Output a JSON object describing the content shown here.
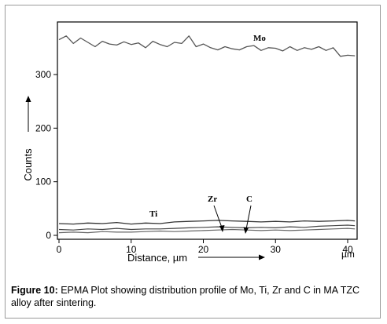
{
  "chart_data": {
    "type": "line",
    "title": "",
    "xlabel": "Distance, µm",
    "x_unit_label": "µm",
    "ylabel": "Counts",
    "xlim": [
      0,
      41
    ],
    "ylim": [
      0,
      395
    ],
    "x_ticks": [
      0,
      10,
      20,
      30,
      40
    ],
    "y_ticks": [
      0,
      100,
      200,
      300
    ],
    "grid": false,
    "series": [
      {
        "name": "Mo",
        "x": [
          0,
          1,
          2,
          3,
          4,
          5,
          6,
          7,
          8,
          9,
          10,
          11,
          12,
          13,
          14,
          15,
          16,
          17,
          18,
          19,
          20,
          21,
          22,
          23,
          24,
          25,
          26,
          27,
          28,
          29,
          30,
          31,
          32,
          33,
          34,
          35,
          36,
          37,
          38,
          39,
          40,
          41
        ],
        "values": [
          365,
          372,
          358,
          368,
          360,
          352,
          362,
          357,
          355,
          361,
          356,
          359,
          350,
          362,
          356,
          352,
          360,
          358,
          372,
          352,
          357,
          350,
          346,
          352,
          348,
          346,
          352,
          354,
          345,
          350,
          349,
          344,
          352,
          345,
          350,
          347,
          352,
          345,
          350,
          334,
          336,
          335
        ]
      },
      {
        "name": "Ti",
        "x": [
          0,
          2,
          4,
          6,
          8,
          10,
          12,
          14,
          16,
          18,
          20,
          22,
          24,
          26,
          28,
          30,
          32,
          34,
          36,
          38,
          40,
          41
        ],
        "values": [
          22,
          21,
          23,
          22,
          24,
          21,
          23,
          22,
          25,
          26,
          27,
          28,
          27,
          26,
          25,
          26,
          25,
          27,
          26,
          27,
          28,
          27
        ]
      },
      {
        "name": "Zr",
        "x": [
          0,
          2,
          4,
          6,
          8,
          10,
          12,
          14,
          16,
          18,
          20,
          22,
          24,
          26,
          28,
          30,
          32,
          34,
          36,
          38,
          40,
          41
        ],
        "values": [
          11,
          10,
          12,
          11,
          13,
          11,
          12,
          12,
          13,
          14,
          15,
          16,
          15,
          14,
          15,
          14,
          16,
          15,
          17,
          18,
          19,
          18
        ]
      },
      {
        "name": "C",
        "x": [
          0,
          2,
          4,
          6,
          8,
          10,
          12,
          14,
          16,
          18,
          20,
          22,
          24,
          26,
          28,
          30,
          32,
          34,
          36,
          38,
          40,
          41
        ],
        "values": [
          5,
          6,
          5,
          7,
          6,
          6,
          7,
          8,
          7,
          8,
          9,
          10,
          11,
          10,
          9,
          10,
          9,
          10,
          11,
          12,
          13,
          12
        ]
      }
    ]
  },
  "caption": {
    "label": "Figure 10:",
    "text": " EPMA Plot showing distribution profile of Mo, Ti, Zr and C in MA TZC alloy after sintering."
  }
}
